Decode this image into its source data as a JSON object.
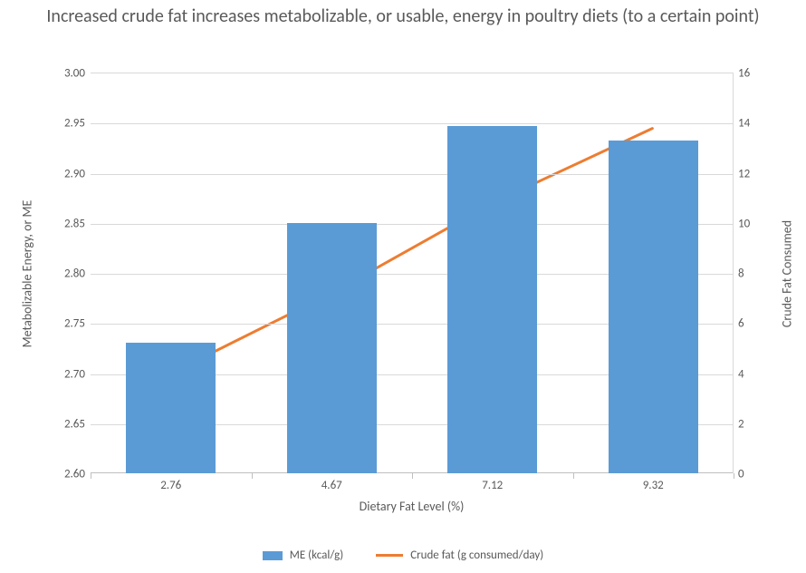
{
  "chart": {
    "type": "bar+line-dual-axis",
    "title": "Increased crude fat increases metabolizable, or usable, energy in poultry diets (to a certain point)",
    "title_fontsize": 20,
    "title_color": "#595959",
    "background_color": "#ffffff",
    "grid_color": "#d9d9d9",
    "axis_line_color": "#bfbfbf",
    "label_color": "#595959",
    "label_fontsize": 13,
    "axis_title_fontsize": 14,
    "x": {
      "title": "Dietary Fat Level (%)",
      "categories": [
        "2.76",
        "4.67",
        "7.12",
        "9.32"
      ]
    },
    "y_left": {
      "title": "Metabolizable Energy, or ME",
      "min": 2.6,
      "max": 3.0,
      "step": 0.05,
      "decimals": 2
    },
    "y_right": {
      "title": "Crude Fat Consumed",
      "min": 0,
      "max": 16,
      "step": 2,
      "decimals": 0
    },
    "series": {
      "bars": {
        "name": "ME (kcal/g)",
        "color": "#5b9bd5",
        "axis": "left",
        "bar_width_frac": 0.56,
        "values": [
          2.73,
          2.85,
          2.947,
          2.932
        ]
      },
      "line": {
        "name": "Crude fat (g consumed/day)",
        "color": "#ed7d31",
        "axis": "right",
        "line_width": 3,
        "values": [
          4.0,
          7.2,
          10.8,
          13.8
        ]
      }
    },
    "legend": {
      "position": "bottom",
      "items": [
        {
          "kind": "bar",
          "label": "ME (kcal/g)",
          "color": "#5b9bd5"
        },
        {
          "kind": "line",
          "label": "Crude fat (g consumed/day)",
          "color": "#ed7d31",
          "line_width": 3
        }
      ]
    }
  }
}
